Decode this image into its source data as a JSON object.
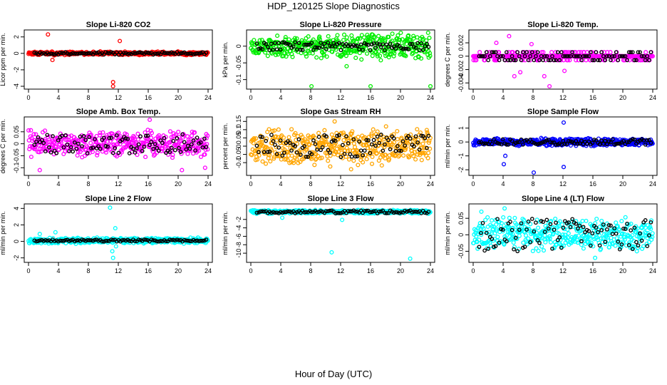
{
  "figure": {
    "title": "HDP_120125  Slope Diagnostics",
    "xlabel": "Hour of Day (UTC)"
  },
  "chart_data": [
    {
      "type": "scatter",
      "title": "Slope Li-820 CO2",
      "xlabel": "",
      "ylabel": "Licor ppm per min.",
      "xlim": [
        0,
        24
      ],
      "ylim": [
        -4,
        2.5
      ],
      "xticks": [
        0,
        4,
        8,
        12,
        16,
        20,
        24
      ],
      "yticks": [
        -4,
        -2,
        0,
        2
      ],
      "color": "#ff0000",
      "band_center": 0,
      "band_halfwidth": 0.25,
      "outliers": [
        [
          2.6,
          2.3
        ],
        [
          11.3,
          -3.5
        ],
        [
          11.3,
          -4
        ],
        [
          12.2,
          1.5
        ],
        [
          3.2,
          -0.8
        ]
      ],
      "black_halfwidth": 0.15,
      "seed": 11
    },
    {
      "type": "scatter",
      "title": "Slope Li-820 Pressure",
      "xlabel": "",
      "ylabel": "kPa per min.",
      "xlim": [
        0,
        24
      ],
      "ylim": [
        -0.12,
        0.04
      ],
      "xticks": [
        0,
        4,
        8,
        12,
        16,
        20,
        24
      ],
      "yticks": [
        -0.1,
        -0.05,
        0
      ],
      "color": "#00ee00",
      "band_center": 0.0,
      "band_halfwidth": 0.03,
      "band_growth": 0.6,
      "outliers": [
        [
          8.1,
          -0.12
        ],
        [
          16,
          -0.12
        ],
        [
          24,
          -0.12
        ],
        [
          21,
          0.03
        ],
        [
          4.2,
          -0.03
        ],
        [
          12.8,
          -0.06
        ]
      ],
      "black_halfwidth": 0.012,
      "seed": 23
    },
    {
      "type": "scatter",
      "title": "Slope Li-820 Temp.",
      "xlabel": "",
      "ylabel": "degrees C per min.",
      "xlim": [
        0,
        24
      ],
      "ylim": [
        -0.0045,
        0.0035
      ],
      "xticks": [
        0,
        4,
        8,
        12,
        16,
        20,
        24
      ],
      "yticks": [
        -0.004,
        -0.002,
        0,
        0.002
      ],
      "color": "#ff00ff",
      "band_center": 0,
      "band_halfwidth": 0.0006,
      "discrete_step": 0.0006,
      "outliers": [
        [
          4.8,
          0.003
        ],
        [
          5.5,
          -0.003
        ],
        [
          9.5,
          -0.003
        ],
        [
          10.2,
          -0.0045
        ],
        [
          3.1,
          0.002
        ],
        [
          7.8,
          0.0018
        ],
        [
          12.2,
          -0.0022
        ],
        [
          6.3,
          -0.0024
        ]
      ],
      "black_halfwidth": 0.0006,
      "seed": 37
    },
    {
      "type": "scatter",
      "title": "Slope Amb. Box Temp.",
      "xlabel": "",
      "ylabel": "degrees C per min.",
      "xlim": [
        0,
        24
      ],
      "ylim": [
        -0.12,
        0.1
      ],
      "xticks": [
        0,
        4,
        8,
        12,
        16,
        20,
        24
      ],
      "yticks": [
        -0.1,
        -0.05,
        0,
        0.05
      ],
      "color": "#ff00ff",
      "band_center": 0,
      "band_halfwidth": 0.06,
      "outliers": [
        [
          1.5,
          -0.11
        ],
        [
          16.2,
          0.1
        ],
        [
          20.5,
          -0.11
        ],
        [
          23.6,
          -0.1
        ]
      ],
      "black_halfwidth": 0.04,
      "seed": 41
    },
    {
      "type": "scatter",
      "title": "Slope Gas Stream RH",
      "xlabel": "",
      "ylabel": "percent per min.",
      "xlim": [
        0,
        24
      ],
      "ylim": [
        -0.16,
        0.16
      ],
      "xticks": [
        0,
        4,
        8,
        12,
        16,
        20,
        24
      ],
      "yticks": [
        -0.1,
        -0.05,
        0,
        0.05,
        0.1,
        0.15
      ],
      "color": "#ffa500",
      "band_center": 0,
      "band_halfwidth": 0.13,
      "outliers": [
        [
          11.2,
          0.15
        ],
        [
          13.4,
          -0.14
        ]
      ],
      "black_halfwidth": 0.07,
      "seed": 53
    },
    {
      "type": "scatter",
      "title": "Slope Sample Flow",
      "xlabel": "",
      "ylabel": "ml/min per min.",
      "xlim": [
        0,
        24
      ],
      "ylim": [
        -2.2,
        1.6
      ],
      "xticks": [
        0,
        4,
        8,
        12,
        16,
        20,
        24
      ],
      "yticks": [
        -2,
        -1,
        0,
        1
      ],
      "color": "#0000ff",
      "band_center": 0,
      "band_halfwidth": 0.3,
      "outliers": [
        [
          4.3,
          -1.0
        ],
        [
          4.1,
          -1.6
        ],
        [
          8.1,
          -2.2
        ],
        [
          12.1,
          1.4
        ],
        [
          12.1,
          -1.8
        ]
      ],
      "black_halfwidth": 0.2,
      "seed": 67
    },
    {
      "type": "scatter",
      "title": "Slope Line 2 Flow",
      "xlabel": "",
      "ylabel": "ml/min per min.",
      "xlim": [
        0,
        24
      ],
      "ylim": [
        -2.2,
        4.2
      ],
      "xticks": [
        0,
        4,
        8,
        12,
        16,
        20,
        24
      ],
      "yticks": [
        -2,
        0,
        2,
        4
      ],
      "color": "#00ffff",
      "band_center": 0.1,
      "band_halfwidth": 0.4,
      "outliers": [
        [
          10.9,
          4.1
        ],
        [
          11.2,
          -1.2
        ],
        [
          11.3,
          -2
        ],
        [
          11.6,
          1.6
        ],
        [
          11.7,
          -0.6
        ],
        [
          3.6,
          1.1
        ],
        [
          1.5,
          0.9
        ]
      ],
      "black_halfwidth": 0.12,
      "seed": 79
    },
    {
      "type": "scatter",
      "title": "Slope Line 3 Flow",
      "xlabel": "",
      "ylabel": "ml/min per min.",
      "xlim": [
        0,
        24
      ],
      "ylim": [
        -11.5,
        1
      ],
      "xticks": [
        0,
        4,
        8,
        12,
        16,
        20,
        24
      ],
      "yticks": [
        -10,
        -8,
        -6,
        -4,
        -2
      ],
      "color": "#00ffff",
      "band_center": -0.2,
      "band_halfwidth": 0.5,
      "outliers": [
        [
          10.8,
          -9.8
        ],
        [
          21.3,
          -11.3
        ],
        [
          4.2,
          -1.6
        ],
        [
          12.2,
          -2.1
        ]
      ],
      "black_halfwidth": 0.35,
      "seed": 83
    },
    {
      "type": "scatter",
      "title": "Slope Line 4 (LT) Flow",
      "xlabel": "",
      "ylabel": "ml/min per min.",
      "xlim": [
        0,
        24
      ],
      "ylim": [
        -0.075,
        0.085
      ],
      "xticks": [
        0,
        4,
        8,
        12,
        16,
        20,
        24
      ],
      "yticks": [
        -0.05,
        0,
        0.05
      ],
      "color": "#00ffff",
      "band_center": 0,
      "band_halfwidth": 0.055,
      "outliers": [
        [
          4.2,
          0.08
        ],
        [
          16.3,
          -0.07
        ],
        [
          1.1,
          0.07
        ]
      ],
      "black_halfwidth": 0.05,
      "seed": 97
    }
  ]
}
